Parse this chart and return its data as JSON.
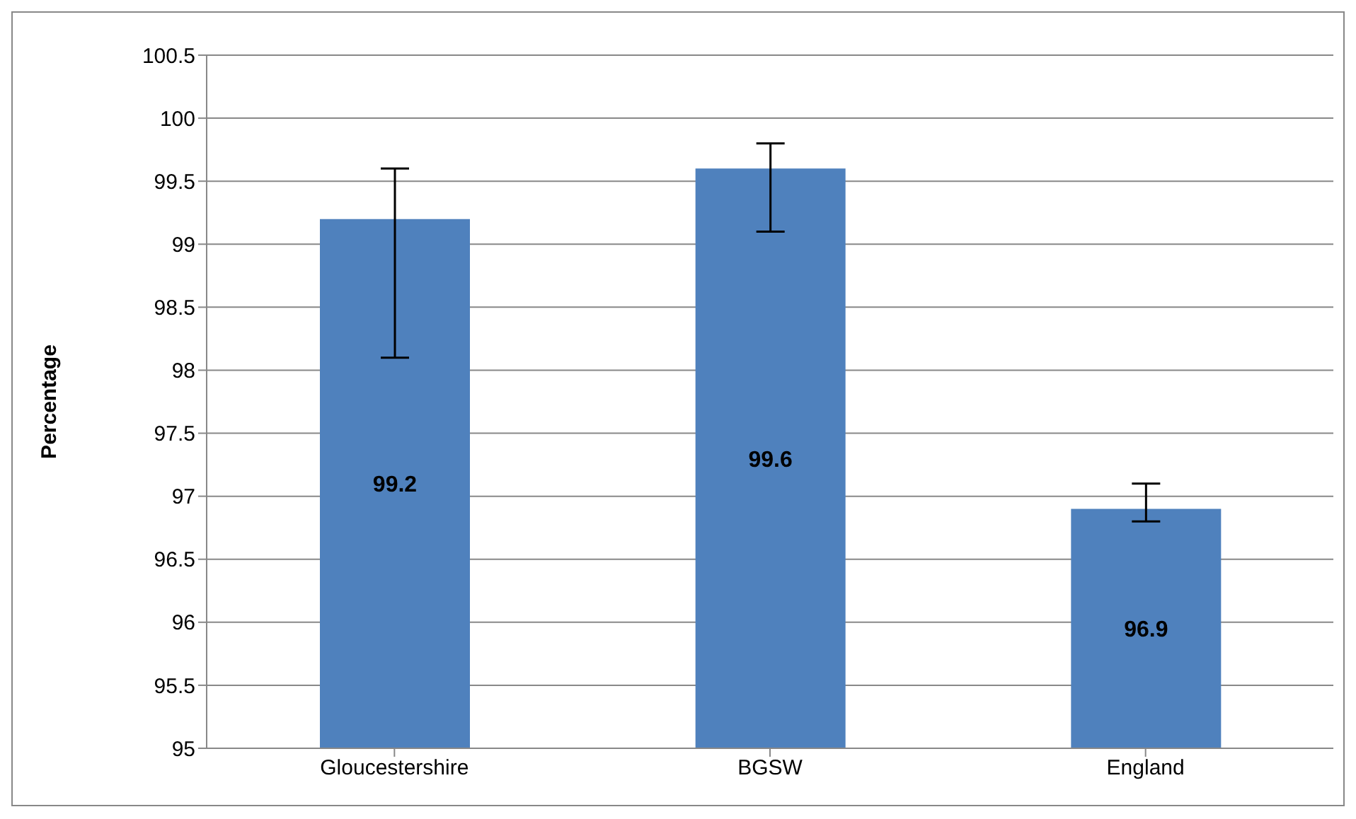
{
  "chart_data": {
    "type": "bar",
    "ylabel": "Percentage",
    "categories": [
      "Gloucestershire",
      "BGSW",
      "England"
    ],
    "values": [
      99.2,
      99.6,
      96.9
    ],
    "errors": [
      [
        98.1,
        99.6
      ],
      [
        99.1,
        99.8
      ],
      [
        96.8,
        97.1
      ]
    ],
    "color": "#4f81bd",
    "ylim": [
      95,
      100.5
    ],
    "yticks": [
      95,
      95.5,
      96,
      96.5,
      97,
      97.5,
      98,
      98.5,
      99,
      99.5,
      100,
      100.5
    ],
    "grid": "y",
    "data_labels": true
  }
}
